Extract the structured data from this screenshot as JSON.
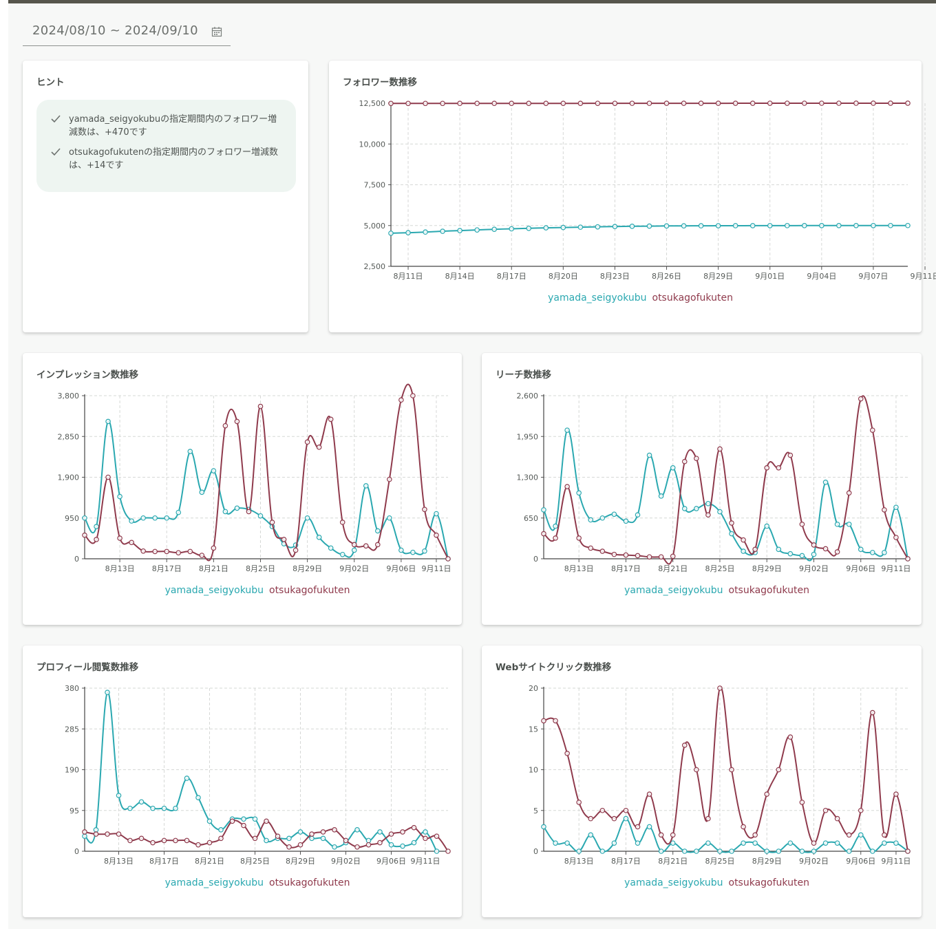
{
  "date_range": "2024/08/10 ~ 2024/09/10",
  "colors": {
    "yamada": "#2aa8b0",
    "otsuka": "#8f3a4c"
  },
  "hint": {
    "title": "ヒント",
    "items": [
      "yamada_seigyokubuの指定期間内のフォロワー増減数は、+470です",
      "otsukagofukutenの指定期間内のフォロワー増減数は、+14です"
    ]
  },
  "chart_data": [
    {
      "id": "followers",
      "type": "line",
      "title": "フォロワー数推移",
      "ylim": [
        2500,
        12500
      ],
      "yticks": [
        "2,500",
        "5,000",
        "7,500",
        "10,000",
        "12,500"
      ],
      "ytick_values": [
        2500,
        5000,
        7500,
        10000,
        12500
      ],
      "xticks": [
        "8月11日",
        "8月14日",
        "8月17日",
        "8月20日",
        "8月23日",
        "8月26日",
        "8月29日",
        "9月01日",
        "9月04日",
        "9月07日",
        "9月11日"
      ],
      "xtick_index": [
        1,
        4,
        7,
        10,
        13,
        16,
        19,
        22,
        25,
        28,
        31
      ],
      "grid": true,
      "legend": "bottom",
      "series": [
        {
          "name": "yamada_seigyokubu",
          "color_key": "yamada",
          "values": [
            4530,
            4560,
            4600,
            4650,
            4690,
            4730,
            4770,
            4800,
            4830,
            4860,
            4880,
            4900,
            4920,
            4940,
            4955,
            4965,
            4975,
            4980,
            4985,
            4988,
            4990,
            4992,
            4994,
            4995,
            4996,
            4997,
            4998,
            4998,
            4999,
            5000,
            5000
          ]
        },
        {
          "name": "otsukagofukuten",
          "color_key": "otsuka",
          "values": [
            12488,
            12488,
            12489,
            12489,
            12490,
            12490,
            12491,
            12491,
            12492,
            12492,
            12493,
            12493,
            12494,
            12494,
            12495,
            12495,
            12496,
            12496,
            12497,
            12497,
            12498,
            12498,
            12499,
            12499,
            12500,
            12500,
            12500,
            12501,
            12501,
            12502,
            12502
          ]
        }
      ]
    },
    {
      "id": "impressions",
      "type": "line",
      "title": "インプレッション数推移",
      "ylim": [
        0,
        3800
      ],
      "yticks": [
        "0",
        "950",
        "1,900",
        "2,850",
        "3,800"
      ],
      "ytick_values": [
        0,
        950,
        1900,
        2850,
        3800
      ],
      "xticks": [
        "8月13日",
        "8月17日",
        "8月21日",
        "8月25日",
        "8月29日",
        "9月02日",
        "9月06日",
        "9月11日"
      ],
      "xtick_index": [
        3,
        7,
        11,
        15,
        19,
        23,
        27,
        30
      ],
      "grid": true,
      "legend": "bottom",
      "series": [
        {
          "name": "yamada_seigyokubu",
          "color_key": "yamada",
          "values": [
            950,
            750,
            3200,
            1450,
            880,
            950,
            950,
            950,
            1080,
            2500,
            1550,
            2050,
            1100,
            1180,
            1150,
            1000,
            750,
            350,
            320,
            950,
            500,
            250,
            100,
            200,
            1700,
            650,
            950,
            200,
            150,
            180,
            1050,
            0
          ]
        },
        {
          "name": "otsukagofukuten",
          "color_key": "otsuka",
          "values": [
            550,
            450,
            1900,
            480,
            380,
            180,
            170,
            170,
            140,
            170,
            80,
            250,
            3100,
            3200,
            1100,
            3550,
            850,
            450,
            200,
            2720,
            2600,
            3250,
            850,
            330,
            300,
            330,
            1850,
            3700,
            3800,
            1150,
            550,
            0
          ]
        }
      ]
    },
    {
      "id": "reach",
      "type": "line",
      "title": "リーチ数推移",
      "ylim": [
        0,
        2600
      ],
      "yticks": [
        "0",
        "650",
        "1,300",
        "1,950",
        "2,600"
      ],
      "ytick_values": [
        0,
        650,
        1300,
        1950,
        2600
      ],
      "xticks": [
        "8月13日",
        "8月17日",
        "8月21日",
        "8月25日",
        "8月29日",
        "9月02日",
        "9月06日",
        "9月11日"
      ],
      "xtick_index": [
        3,
        7,
        11,
        15,
        19,
        23,
        27,
        30
      ],
      "grid": true,
      "legend": "bottom",
      "series": [
        {
          "name": "yamada_seigyokubu",
          "color_key": "yamada",
          "values": [
            780,
            520,
            2050,
            1050,
            620,
            650,
            710,
            600,
            700,
            1650,
            1000,
            1450,
            800,
            800,
            880,
            750,
            400,
            120,
            100,
            520,
            150,
            80,
            50,
            70,
            1220,
            550,
            550,
            150,
            100,
            100,
            820,
            0
          ]
        },
        {
          "name": "otsukagofukuten",
          "color_key": "otsuka",
          "values": [
            400,
            330,
            1150,
            330,
            170,
            120,
            70,
            60,
            50,
            30,
            30,
            40,
            1550,
            1600,
            700,
            1750,
            570,
            300,
            150,
            1450,
            1450,
            1650,
            550,
            220,
            160,
            110,
            1050,
            2550,
            2050,
            780,
            340,
            0
          ]
        }
      ]
    },
    {
      "id": "profile",
      "type": "line",
      "title": "プロフィール閲覧数推移",
      "ylim": [
        0,
        380
      ],
      "yticks": [
        "0",
        "95",
        "190",
        "285",
        "380"
      ],
      "ytick_values": [
        0,
        95,
        190,
        285,
        380
      ],
      "xticks": [
        "8月13日",
        "8月17日",
        "8月21日",
        "8月25日",
        "8月29日",
        "9月02日",
        "9月06日",
        "9月11日"
      ],
      "xtick_index": [
        3,
        7,
        11,
        15,
        19,
        23,
        27,
        30
      ],
      "grid": true,
      "legend": "bottom",
      "series": [
        {
          "name": "yamada_seigyokubu",
          "color_key": "yamada",
          "values": [
            35,
            50,
            370,
            130,
            100,
            115,
            100,
            100,
            100,
            170,
            125,
            70,
            50,
            75,
            75,
            75,
            25,
            30,
            30,
            45,
            30,
            30,
            10,
            20,
            50,
            25,
            45,
            15,
            12,
            20,
            45,
            0
          ]
        },
        {
          "name": "otsukagofukuten",
          "color_key": "otsuka",
          "values": [
            45,
            40,
            40,
            40,
            25,
            30,
            20,
            25,
            25,
            25,
            15,
            20,
            30,
            70,
            60,
            30,
            70,
            35,
            10,
            15,
            40,
            45,
            50,
            25,
            10,
            15,
            20,
            40,
            45,
            55,
            30,
            35,
            0
          ]
        }
      ]
    },
    {
      "id": "webclicks",
      "type": "line",
      "title": "Webサイトクリック数推移",
      "ylim": [
        0,
        20
      ],
      "yticks": [
        "0",
        "5",
        "10",
        "15",
        "20"
      ],
      "ytick_values": [
        0,
        5,
        10,
        15,
        20
      ],
      "xticks": [
        "8月13日",
        "8月17日",
        "8月21日",
        "8月25日",
        "8月29日",
        "9月02日",
        "9月06日",
        "9月11日"
      ],
      "xtick_index": [
        3,
        7,
        11,
        15,
        19,
        23,
        27,
        30
      ],
      "grid": true,
      "legend": "bottom",
      "series": [
        {
          "name": "yamada_seigyokubu",
          "color_key": "yamada",
          "values": [
            3,
            1,
            1,
            0,
            2,
            0,
            1,
            4,
            1,
            3,
            0,
            1,
            0,
            0,
            1,
            0,
            0,
            1,
            1,
            0,
            0,
            1,
            0,
            0,
            1,
            1,
            0,
            2,
            0,
            1,
            1,
            0
          ]
        },
        {
          "name": "otsukagofukuten",
          "color_key": "otsuka",
          "values": [
            16,
            16,
            12,
            6,
            4,
            5,
            4,
            5,
            3,
            7,
            2,
            2,
            13,
            10,
            4,
            20,
            10,
            3,
            2,
            7,
            10,
            14,
            6,
            1,
            5,
            4,
            2,
            5,
            17,
            2,
            7,
            0
          ]
        }
      ]
    }
  ]
}
